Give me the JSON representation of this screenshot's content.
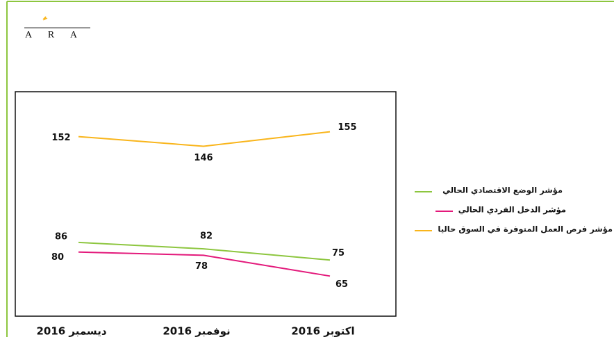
{
  "logo": "A R A",
  "chart_data": {
    "type": "line",
    "categories": [
      "ديسمبر 2016",
      "نوفمبر 2016",
      "اكتوبر 2016"
    ],
    "series": [
      {
        "name": "مؤشر الوضع الاقتصادي الحالي",
        "color": "#8dc63f",
        "values": [
          86,
          82,
          75
        ]
      },
      {
        "name": "مؤشر الدخل الفردي الحالي",
        "color": "#e3197b",
        "values": [
          80,
          78,
          65
        ]
      },
      {
        "name": "مؤشر فرص العمل المتوفرة في السوق حاليا",
        "color": "#f9b51b",
        "values": [
          152,
          146,
          155
        ]
      }
    ],
    "ylim": [
      40,
      180
    ]
  }
}
